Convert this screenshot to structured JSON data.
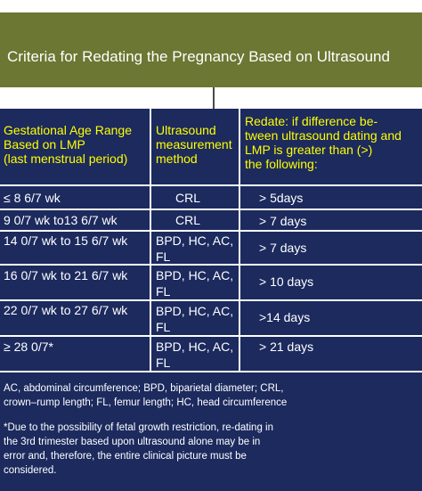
{
  "title": "Criteria for Redating the Pregnancy Based on Ultrasound",
  "headers": {
    "col1": [
      "Gestational Age Range",
      "Based on LMP",
      "(last menstrual period)"
    ],
    "col2": [
      "Ultrasound",
      "measurement",
      "method"
    ],
    "col3": [
      "Redate: if difference be-",
      "tween ultrasound dating and",
      "LMP is greater than (>)",
      "the following:"
    ]
  },
  "rows": [
    {
      "range": "≤ 8 6/7 wk",
      "method": [
        "CRL"
      ],
      "redate": "> 5days"
    },
    {
      "range": "9 0/7 wk to13 6/7 wk",
      "method": [
        "CRL"
      ],
      "redate": "> 7 days"
    },
    {
      "range": "14 0/7 wk to 15 6/7 wk",
      "method": [
        "BPD, HC, AC,",
        "FL"
      ],
      "redate": "> 7 days"
    },
    {
      "range": "16 0/7 wk to 21 6/7 wk",
      "method": [
        "BPD, HC, AC,",
        "FL"
      ],
      "redate": "> 10 days"
    },
    {
      "range": "22 0/7 wk to 27 6/7 wk",
      "method": [
        "BPD, HC, AC,",
        "FL"
      ],
      "redate": ">14 days"
    },
    {
      "range": "≥ 28 0/7*",
      "method": [
        "BPD, HC, AC,",
        "FL"
      ],
      "redate": "> 21 days"
    }
  ],
  "abbreviations": [
    "AC, abdominal circumference; BPD, biparietal diameter; CRL,",
    "crown–rump length; FL, femur length; HC, head circumference"
  ],
  "footnote": [
    "*Due to the possibility of fetal growth restriction, re-dating in",
    "the 3rd trimester based upon ultrasound alone may be in",
    "error and, therefore,  the entire clinical picture must be",
    "considered."
  ],
  "colors": {
    "title_bg": "#6b7732",
    "panel_bg": "#1c2a5e",
    "header_text": "#ffff00"
  }
}
